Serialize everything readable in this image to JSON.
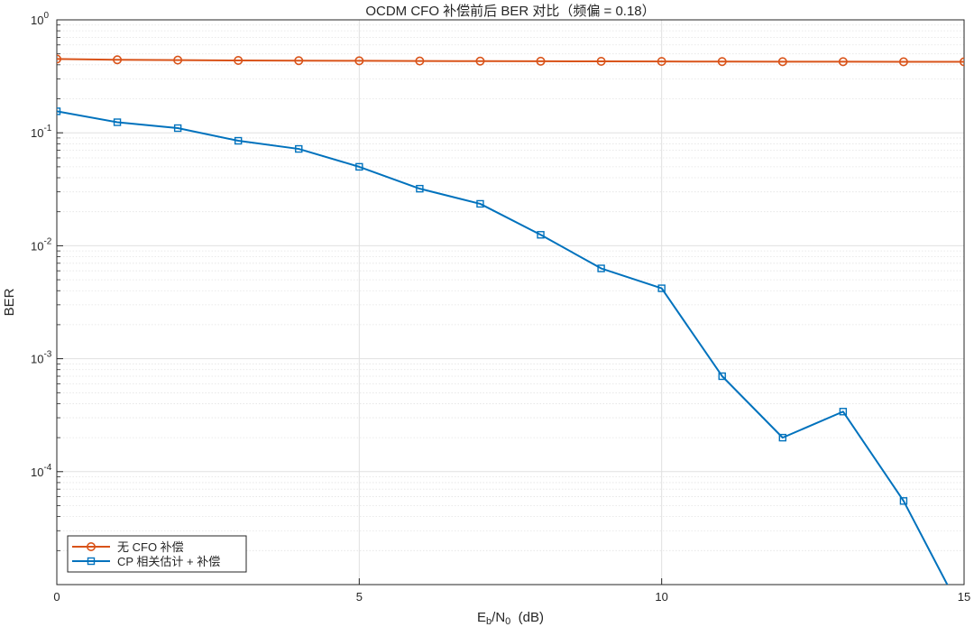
{
  "chart_data": {
    "type": "line",
    "title": "OCDM CFO 补偿前后 BER 对比（频偏 = 0.18）",
    "xlabel": {
      "base": "E",
      "sub1": "b",
      "mid": "/N",
      "sub2": "0",
      "tail": "  (dB)"
    },
    "ylabel": "BER",
    "x_scale": "linear",
    "y_scale": "log",
    "xlim": [
      0,
      15
    ],
    "ylim": [
      1e-05,
      1
    ],
    "x_ticks": [
      0,
      5,
      10,
      15
    ],
    "x_tick_labels": [
      "0",
      "5",
      "10",
      "15"
    ],
    "y_ticks": [
      1,
      0.1,
      0.01,
      0.001,
      0.0001
    ],
    "y_tick_labels": [
      {
        "base": "10",
        "exp": "0"
      },
      {
        "base": "10",
        "exp": "-1"
      },
      {
        "base": "10",
        "exp": "-2"
      },
      {
        "base": "10",
        "exp": "-3"
      },
      {
        "base": "10",
        "exp": "-4"
      }
    ],
    "grid": true,
    "legend_position": "bottom-left",
    "x": [
      0,
      1,
      2,
      3,
      4,
      5,
      6,
      7,
      8,
      9,
      10,
      11,
      12,
      13,
      14,
      15
    ],
    "series": [
      {
        "name": "无 CFO 补偿",
        "color": "#D95319",
        "marker": "circle",
        "values": [
          0.45,
          0.443,
          0.44,
          0.437,
          0.435,
          0.434,
          0.432,
          0.431,
          0.43,
          0.429,
          0.428,
          0.427,
          0.426,
          0.426,
          0.425,
          0.425
        ]
      },
      {
        "name": "CP 相关估计 + 补偿",
        "color": "#0072BD",
        "marker": "square",
        "values": [
          0.155,
          0.124,
          0.11,
          0.085,
          0.072,
          0.05,
          0.032,
          0.0235,
          0.0125,
          0.0063,
          0.0042,
          0.0007,
          0.0002,
          0.00034,
          5.5e-05,
          5.2e-06
        ]
      }
    ]
  }
}
